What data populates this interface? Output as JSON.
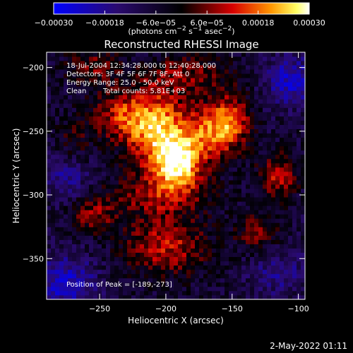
{
  "chart_data": {
    "type": "heatmap",
    "title": "Reconstructed RHESSI Image",
    "xlabel": "Heliocentric X (arcsec)",
    "ylabel": "Heliocentric Y (arcsec)",
    "xlim": [
      -290,
      -95
    ],
    "ylim": [
      -382,
      -188
    ],
    "x_ticks": [
      {
        "value": -250,
        "label": "−250"
      },
      {
        "value": -200,
        "label": "−200"
      },
      {
        "value": -150,
        "label": "−150"
      },
      {
        "value": -100,
        "label": "−100"
      }
    ],
    "y_ticks": [
      {
        "value": -200,
        "label": "−200"
      },
      {
        "value": -250,
        "label": "−250"
      },
      {
        "value": -300,
        "label": "−300"
      },
      {
        "value": -350,
        "label": "−350"
      }
    ],
    "colorbar": {
      "range": [
        -0.0003,
        0.0003
      ],
      "ticks": [
        {
          "value": -0.0003,
          "label": "−0.00030"
        },
        {
          "value": -0.00018,
          "label": "−0.00018"
        },
        {
          "value": -6e-05,
          "label": "−6.0e−05"
        },
        {
          "value": 6e-05,
          "label": "6.0e−05"
        },
        {
          "value": 0.00018,
          "label": "0.00018"
        },
        {
          "value": 0.0003,
          "label": "0.00030"
        }
      ],
      "unit_parts": [
        "(photons cm",
        "−2",
        " s",
        "−1",
        " asec",
        "−2",
        ")"
      ]
    },
    "peak": {
      "x": -189,
      "y": -273
    },
    "sources": [
      {
        "x": -205,
        "y": -250,
        "sx": 16,
        "sy": 22,
        "amp": 0.00028
      },
      {
        "x": -190,
        "y": -275,
        "sx": 12,
        "sy": 14,
        "amp": 0.0003
      },
      {
        "x": -232,
        "y": -238,
        "sx": 16,
        "sy": 14,
        "amp": 0.00018
      },
      {
        "x": -165,
        "y": -250,
        "sx": 14,
        "sy": 16,
        "amp": 0.00022
      },
      {
        "x": -150,
        "y": -240,
        "sx": 10,
        "sy": 14,
        "amp": 0.00016
      },
      {
        "x": -205,
        "y": -300,
        "sx": 26,
        "sy": 12,
        "amp": 0.00014
      },
      {
        "x": -200,
        "y": -340,
        "sx": 22,
        "sy": 16,
        "amp": 0.00018
      },
      {
        "x": -255,
        "y": -315,
        "sx": 12,
        "sy": 10,
        "amp": 0.00014
      },
      {
        "x": -115,
        "y": -285,
        "sx": 10,
        "sy": 12,
        "amp": 0.00018
      },
      {
        "x": -130,
        "y": -330,
        "sx": 12,
        "sy": 12,
        "amp": 0.00012
      },
      {
        "x": -255,
        "y": -200,
        "sx": 14,
        "sy": 10,
        "amp": 0.00012
      },
      {
        "x": -185,
        "y": -205,
        "sx": 24,
        "sy": 10,
        "amp": 0.00012
      },
      {
        "x": -270,
        "y": -260,
        "sx": 10,
        "sy": 14,
        "amp": 8e-05
      },
      {
        "x": -275,
        "y": -370,
        "sx": 16,
        "sy": 16,
        "amp": -0.00016
      },
      {
        "x": -105,
        "y": -210,
        "sx": 14,
        "sy": 14,
        "amp": -0.00016
      },
      {
        "x": -115,
        "y": -360,
        "sx": 16,
        "sy": 14,
        "amp": -0.0001
      },
      {
        "x": -275,
        "y": -285,
        "sx": 12,
        "sy": 14,
        "amp": -0.00012
      }
    ]
  },
  "annotations": {
    "time_range": "18-Jul-2004 12:34:28.000 to 12:40:28.000",
    "detectors": "Detectors: 3F 4F 5F 6F 7F 8F, Att 0",
    "energy_range": "Energy Range: 25.0 - 50.0 keV",
    "clean_label": "Clean",
    "total_counts": "Total counts: 5.81E+03",
    "peak_label": "Position of Peak = [-189,-273]"
  },
  "footer": {
    "timestamp": "2-May-2022 01:11"
  }
}
